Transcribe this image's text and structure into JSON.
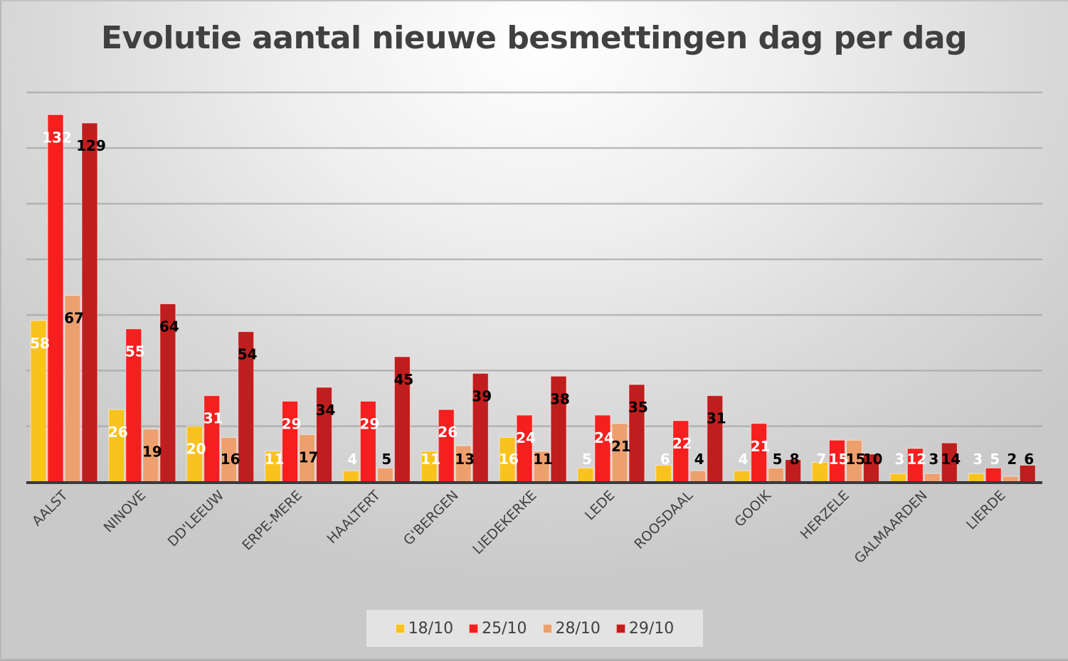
{
  "chart_data": {
    "type": "bar",
    "title": "Evolutie aantal nieuwe besmettingen dag per dag",
    "xlabel": "",
    "ylabel": "",
    "ylim": [
      0,
      140
    ],
    "grid": true,
    "grid_step": 20,
    "legend_position": "bottom",
    "categories": [
      "AALST",
      "NINOVE",
      "DD'LEEUW",
      "ERPE-MERE",
      "HAALTERT",
      "G'BERGEN",
      "LIEDEKERKE",
      "LEDE",
      "ROOSDAAL",
      "GOOIK",
      "HERZELE",
      "GALMAARDEN",
      "LIERDE"
    ],
    "series": [
      {
        "name": "18/10",
        "color": "#f9c21e",
        "label_color": "#ffffff",
        "values": [
          58,
          26,
          20,
          11,
          4,
          11,
          16,
          5,
          6,
          4,
          7,
          3,
          3
        ]
      },
      {
        "name": "25/10",
        "color": "#f51f1f",
        "label_color": "#ffffff",
        "values": [
          132,
          55,
          31,
          29,
          29,
          26,
          24,
          24,
          22,
          21,
          15,
          12,
          5
        ]
      },
      {
        "name": "28/10",
        "color": "#eda06e",
        "label_color": "#000000",
        "values": [
          67,
          19,
          16,
          17,
          5,
          13,
          11,
          21,
          4,
          5,
          15,
          3,
          2
        ]
      },
      {
        "name": "29/10",
        "color": "#c01e1e",
        "label_color": "#000000",
        "values": [
          129,
          64,
          54,
          34,
          45,
          39,
          38,
          35,
          31,
          8,
          10,
          14,
          6
        ]
      }
    ]
  }
}
